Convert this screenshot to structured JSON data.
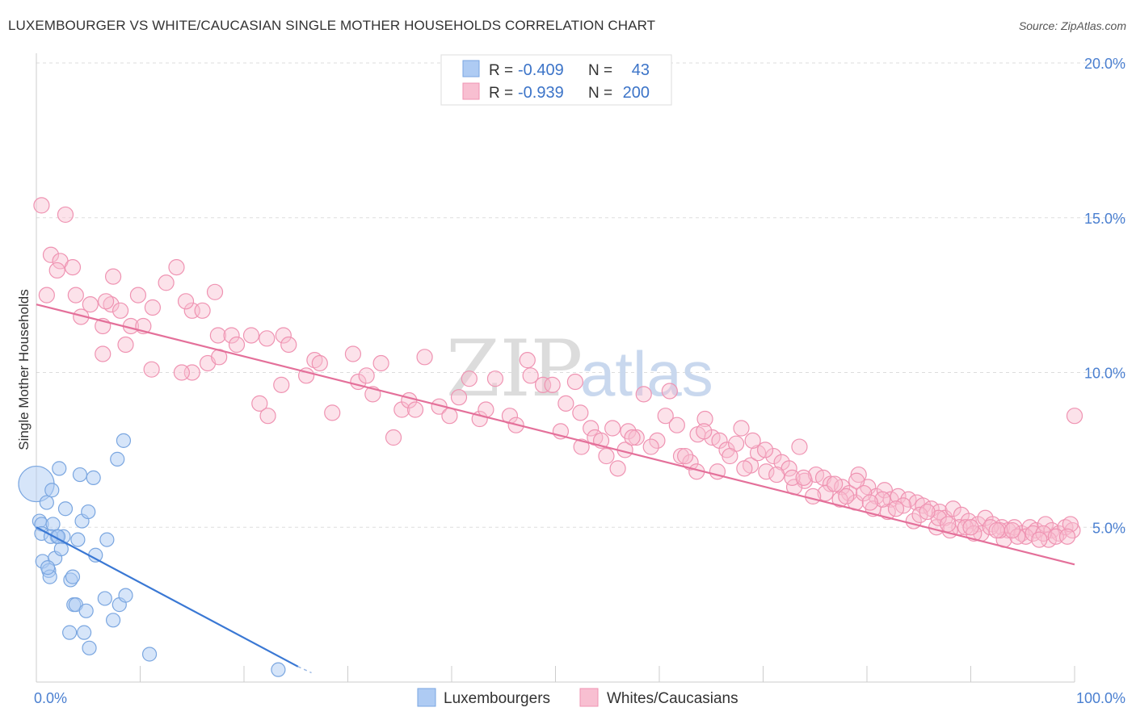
{
  "title": "LUXEMBOURGER VS WHITE/CAUCASIAN SINGLE MOTHER HOUSEHOLDS CORRELATION CHART",
  "source": "Source: ZipAtlas.com",
  "watermark": {
    "zip": "ZIP",
    "atlas": "atlas"
  },
  "colors": {
    "blue_fill": "#aecbf3",
    "blue_stroke": "#7aa6e0",
    "blue_line": "#3a78d4",
    "pink_fill": "#f8bfd1",
    "pink_stroke": "#ef93b2",
    "pink_line": "#e4709a",
    "grid": "#dddddd",
    "tick_label": "#4a7fd0"
  },
  "legend": {
    "rows": [
      {
        "r_label": "R = ",
        "r_value": "-0.409",
        "n_label": "N = ",
        "n_value": "43"
      },
      {
        "r_label": "R = ",
        "r_value": "-0.939",
        "n_label": "N = ",
        "n_value": "200"
      }
    ]
  },
  "bottom_legend": [
    "Luxembourgers",
    "Whites/Caucasians"
  ],
  "chart_data": {
    "type": "scatter",
    "title": "LUXEMBOURGER VS WHITE/CAUCASIAN SINGLE MOTHER HOUSEHOLDS CORRELATION CHART",
    "xlabel": "",
    "ylabel": "Single Mother Households",
    "xlim": [
      0,
      100
    ],
    "ylim": [
      0,
      20
    ],
    "x_tick_labels": [
      "0.0%",
      "100.0%"
    ],
    "y_ticks": [
      5,
      10,
      15,
      20
    ],
    "y_tick_labels": [
      "5.0%",
      "10.0%",
      "15.0%",
      "20.0%"
    ],
    "grid": true,
    "legend_position": "top-center",
    "series": [
      {
        "name": "Luxembourgers",
        "color": "#aecbf3",
        "trend": {
          "x": [
            0,
            25.2
          ],
          "y": [
            5.0,
            0.5
          ],
          "dashed_to": [
            26.5,
            0.3
          ]
        },
        "points": [
          [
            0.0,
            6.4
          ],
          [
            0.3,
            5.2
          ],
          [
            0.5,
            5.1
          ],
          [
            0.5,
            4.8
          ],
          [
            0.6,
            3.9
          ],
          [
            1.0,
            5.8
          ],
          [
            1.2,
            3.6
          ],
          [
            1.3,
            3.4
          ],
          [
            1.5,
            6.2
          ],
          [
            1.6,
            5.1
          ],
          [
            1.8,
            4.0
          ],
          [
            2.0,
            4.7
          ],
          [
            2.0,
            4.7
          ],
          [
            2.2,
            6.9
          ],
          [
            2.4,
            4.3
          ],
          [
            2.6,
            4.7
          ],
          [
            2.8,
            5.6
          ],
          [
            3.2,
            1.6
          ],
          [
            3.3,
            3.3
          ],
          [
            3.5,
            3.4
          ],
          [
            3.6,
            2.5
          ],
          [
            3.8,
            2.5
          ],
          [
            4.0,
            4.6
          ],
          [
            4.2,
            6.7
          ],
          [
            4.4,
            5.2
          ],
          [
            4.6,
            1.6
          ],
          [
            4.8,
            2.3
          ],
          [
            5.0,
            5.5
          ],
          [
            5.1,
            1.1
          ],
          [
            5.5,
            6.6
          ],
          [
            5.7,
            4.1
          ],
          [
            6.6,
            2.7
          ],
          [
            6.8,
            4.6
          ],
          [
            7.4,
            2.0
          ],
          [
            7.8,
            7.2
          ],
          [
            8.0,
            2.5
          ],
          [
            8.4,
            7.8
          ],
          [
            8.6,
            2.8
          ],
          [
            10.9,
            0.9
          ],
          [
            23.3,
            0.4
          ],
          [
            1.4,
            4.7
          ],
          [
            2.1,
            4.7
          ],
          [
            1.1,
            3.7
          ]
        ]
      },
      {
        "name": "Whites/Caucasians",
        "color": "#f8bfd1",
        "trend": {
          "x": [
            0,
            100
          ],
          "y": [
            12.2,
            3.8
          ]
        },
        "points": [
          [
            0.5,
            15.4
          ],
          [
            2.8,
            15.1
          ],
          [
            1.4,
            13.8
          ],
          [
            2.3,
            13.6
          ],
          [
            3.5,
            13.4
          ],
          [
            2.0,
            13.3
          ],
          [
            1.0,
            12.5
          ],
          [
            3.8,
            12.5
          ],
          [
            5.2,
            12.2
          ],
          [
            7.2,
            12.2
          ],
          [
            6.7,
            12.3
          ],
          [
            9.8,
            12.5
          ],
          [
            11.2,
            12.1
          ],
          [
            13.5,
            13.4
          ],
          [
            12.5,
            12.9
          ],
          [
            15.0,
            12.0
          ],
          [
            14.4,
            12.3
          ],
          [
            17.2,
            12.6
          ],
          [
            7.4,
            13.1
          ],
          [
            4.3,
            11.8
          ],
          [
            6.4,
            11.5
          ],
          [
            9.1,
            11.5
          ],
          [
            10.3,
            11.5
          ],
          [
            8.1,
            12.0
          ],
          [
            16.0,
            12.0
          ],
          [
            17.5,
            11.2
          ],
          [
            20.7,
            11.2
          ],
          [
            18.8,
            11.2
          ],
          [
            19.3,
            10.9
          ],
          [
            22.2,
            11.1
          ],
          [
            23.8,
            11.2
          ],
          [
            24.3,
            10.9
          ],
          [
            8.6,
            10.9
          ],
          [
            6.4,
            10.6
          ],
          [
            15.0,
            10.0
          ],
          [
            16.5,
            10.3
          ],
          [
            17.6,
            10.5
          ],
          [
            11.1,
            10.1
          ],
          [
            14.0,
            10.0
          ],
          [
            21.5,
            9.0
          ],
          [
            22.3,
            8.6
          ],
          [
            23.6,
            9.6
          ],
          [
            26.0,
            9.9
          ],
          [
            26.8,
            10.4
          ],
          [
            27.3,
            10.3
          ],
          [
            28.5,
            8.7
          ],
          [
            30.5,
            10.6
          ],
          [
            31.0,
            9.7
          ],
          [
            31.8,
            9.9
          ],
          [
            32.4,
            9.3
          ],
          [
            33.2,
            10.3
          ],
          [
            34.4,
            7.9
          ],
          [
            35.2,
            8.8
          ],
          [
            35.9,
            9.1
          ],
          [
            36.5,
            8.8
          ],
          [
            37.4,
            10.5
          ],
          [
            38.8,
            8.9
          ],
          [
            39.8,
            8.6
          ],
          [
            40.7,
            9.2
          ],
          [
            41.7,
            9.8
          ],
          [
            42.7,
            8.5
          ],
          [
            43.3,
            8.8
          ],
          [
            44.2,
            9.8
          ],
          [
            45.6,
            8.6
          ],
          [
            46.2,
            8.3
          ],
          [
            47.3,
            10.4
          ],
          [
            47.6,
            9.9
          ],
          [
            48.8,
            9.6
          ],
          [
            49.7,
            9.6
          ],
          [
            50.5,
            8.1
          ],
          [
            51.0,
            9.0
          ],
          [
            51.9,
            9.7
          ],
          [
            52.4,
            8.7
          ],
          [
            53.4,
            8.2
          ],
          [
            53.8,
            7.9
          ],
          [
            54.4,
            7.8
          ],
          [
            55.5,
            8.2
          ],
          [
            56.7,
            7.5
          ],
          [
            57.0,
            8.1
          ],
          [
            57.8,
            7.9
          ],
          [
            58.5,
            9.3
          ],
          [
            59.8,
            7.8
          ],
          [
            60.6,
            8.6
          ],
          [
            61.7,
            8.3
          ],
          [
            62.1,
            7.3
          ],
          [
            63.0,
            7.1
          ],
          [
            63.7,
            8.0
          ],
          [
            64.4,
            8.5
          ],
          [
            65.1,
            7.9
          ],
          [
            65.8,
            7.8
          ],
          [
            66.5,
            7.5
          ],
          [
            67.4,
            7.7
          ],
          [
            67.9,
            8.2
          ],
          [
            68.8,
            7.0
          ],
          [
            69.5,
            7.4
          ],
          [
            70.3,
            6.8
          ],
          [
            71.0,
            7.3
          ],
          [
            71.8,
            7.1
          ],
          [
            72.5,
            6.9
          ],
          [
            73.5,
            7.6
          ],
          [
            74.0,
            6.5
          ],
          [
            75.1,
            6.7
          ],
          [
            75.8,
            6.6
          ],
          [
            76.5,
            6.4
          ],
          [
            77.6,
            6.3
          ],
          [
            78.3,
            6.1
          ],
          [
            79.2,
            6.7
          ],
          [
            80.1,
            6.3
          ],
          [
            80.9,
            6.0
          ],
          [
            81.7,
            6.2
          ],
          [
            82.3,
            5.9
          ],
          [
            83.0,
            6.0
          ],
          [
            84.0,
            5.9
          ],
          [
            84.8,
            5.8
          ],
          [
            85.4,
            5.7
          ],
          [
            86.2,
            5.6
          ],
          [
            87.0,
            5.5
          ],
          [
            87.5,
            5.3
          ],
          [
            88.3,
            5.6
          ],
          [
            89.1,
            5.4
          ],
          [
            89.8,
            5.2
          ],
          [
            90.7,
            5.1
          ],
          [
            91.4,
            5.3
          ],
          [
            92.1,
            5.1
          ],
          [
            93.0,
            5.0
          ],
          [
            93.6,
            4.9
          ],
          [
            94.2,
            5.0
          ],
          [
            94.9,
            4.8
          ],
          [
            95.7,
            5.0
          ],
          [
            96.3,
            4.9
          ],
          [
            97.2,
            5.1
          ],
          [
            97.8,
            4.9
          ],
          [
            98.5,
            4.8
          ],
          [
            99.1,
            5.0
          ],
          [
            99.8,
            4.9
          ],
          [
            100.0,
            8.6
          ],
          [
            56.0,
            6.9
          ],
          [
            61.0,
            9.4
          ],
          [
            64.3,
            8.1
          ],
          [
            69.0,
            7.8
          ],
          [
            73.0,
            6.3
          ],
          [
            76.0,
            6.1
          ],
          [
            79.0,
            6.5
          ],
          [
            82.0,
            5.5
          ],
          [
            84.5,
            5.2
          ],
          [
            86.7,
            5.0
          ],
          [
            88.9,
            5.0
          ],
          [
            91.0,
            4.8
          ],
          [
            93.2,
            4.6
          ],
          [
            95.3,
            4.7
          ],
          [
            97.5,
            4.6
          ],
          [
            99.6,
            5.1
          ],
          [
            63.6,
            6.8
          ],
          [
            66.8,
            7.3
          ],
          [
            70.2,
            7.5
          ],
          [
            72.8,
            6.6
          ],
          [
            74.8,
            6.0
          ],
          [
            77.4,
            5.9
          ],
          [
            78.9,
            5.8
          ],
          [
            80.6,
            5.6
          ],
          [
            81.5,
            5.9
          ],
          [
            83.5,
            5.7
          ],
          [
            85.1,
            5.4
          ],
          [
            86.9,
            5.3
          ],
          [
            88.0,
            4.9
          ],
          [
            89.5,
            5.0
          ],
          [
            90.3,
            4.8
          ],
          [
            91.9,
            5.0
          ],
          [
            92.8,
            4.9
          ],
          [
            94.5,
            4.7
          ],
          [
            96.0,
            4.8
          ],
          [
            97.0,
            4.8
          ],
          [
            98.2,
            4.7
          ],
          [
            99.3,
            4.7
          ],
          [
            52.5,
            7.6
          ],
          [
            54.9,
            7.3
          ],
          [
            57.4,
            7.9
          ],
          [
            59.2,
            7.6
          ],
          [
            62.5,
            7.3
          ],
          [
            65.6,
            6.8
          ],
          [
            68.2,
            6.9
          ],
          [
            71.3,
            6.7
          ],
          [
            73.9,
            6.6
          ],
          [
            76.9,
            6.4
          ],
          [
            78.0,
            6.0
          ],
          [
            79.7,
            6.1
          ],
          [
            80.3,
            5.8
          ],
          [
            82.8,
            5.6
          ],
          [
            85.8,
            5.5
          ],
          [
            87.8,
            5.1
          ],
          [
            90.0,
            5.0
          ],
          [
            92.5,
            4.9
          ],
          [
            94.0,
            4.9
          ],
          [
            96.6,
            4.6
          ]
        ]
      }
    ]
  }
}
